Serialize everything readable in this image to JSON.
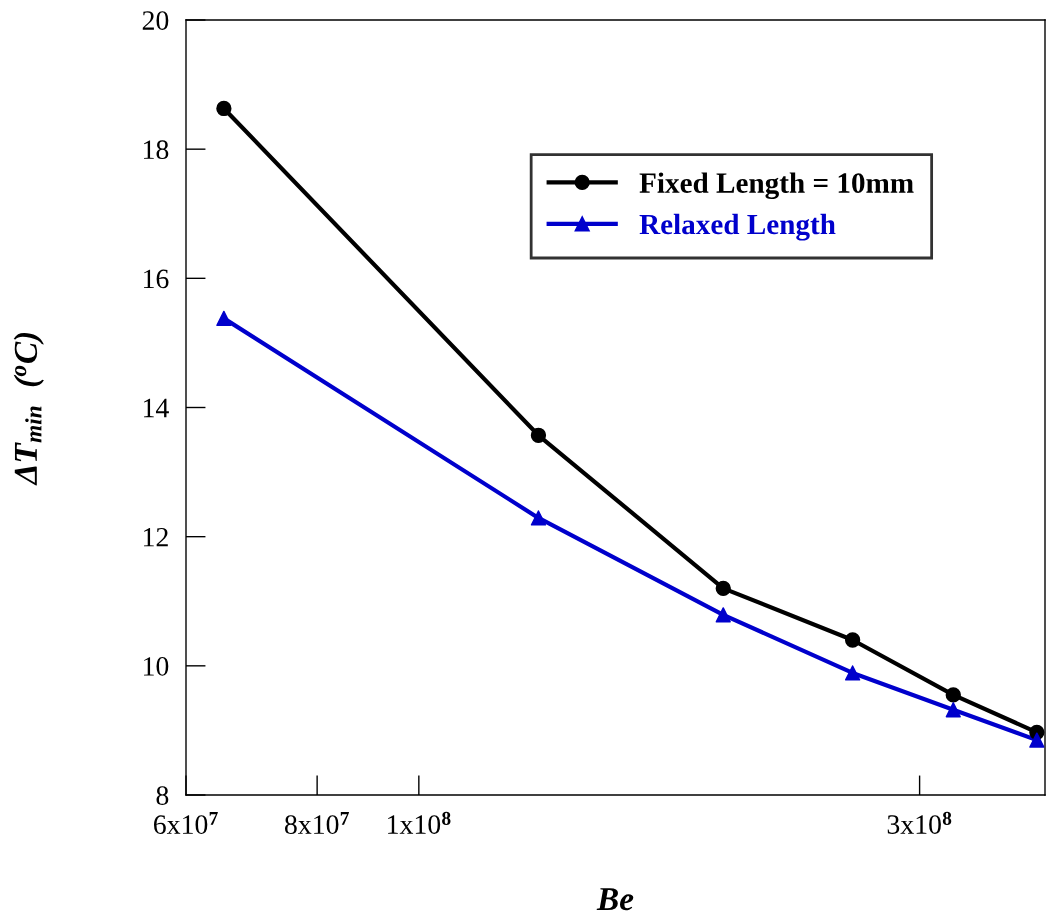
{
  "chart_data": {
    "type": "line",
    "xlabel": "Be",
    "ylabel": "ΔT$_{min}$  ($^{o}$C)",
    "log": "x",
    "grid": false,
    "legend": "top right",
    "line_style": "solid",
    "xlim": [
      60000000,
      395000000
    ],
    "xticks": [
      {
        "value": 60000000,
        "label": "6x10$^{7}$"
      },
      {
        "value": 80000000,
        "label": "8x10$^{7}$"
      },
      {
        "value": 100000000,
        "label": "1x10$^{8}$"
      },
      {
        "value": 300000000,
        "label": "3x10$^{8}$"
      }
    ],
    "ylim": [
      8,
      20
    ],
    "yticks": [
      8,
      10,
      12,
      14,
      16,
      18,
      20
    ],
    "x": [
      65200000,
      130000000,
      195000000,
      259000000,
      323000000,
      388000000
    ],
    "series": [
      {
        "name": "Fixed Length = 10mm",
        "color": "#000000",
        "marker": "circle",
        "values": [
          18.63,
          13.57,
          11.2,
          10.4,
          9.55,
          8.97
        ]
      },
      {
        "name": "Relaxed Length",
        "color": "#0000cc",
        "marker": "triangle",
        "values": [
          15.38,
          12.29,
          10.79,
          9.89,
          9.32,
          8.85
        ]
      }
    ]
  }
}
